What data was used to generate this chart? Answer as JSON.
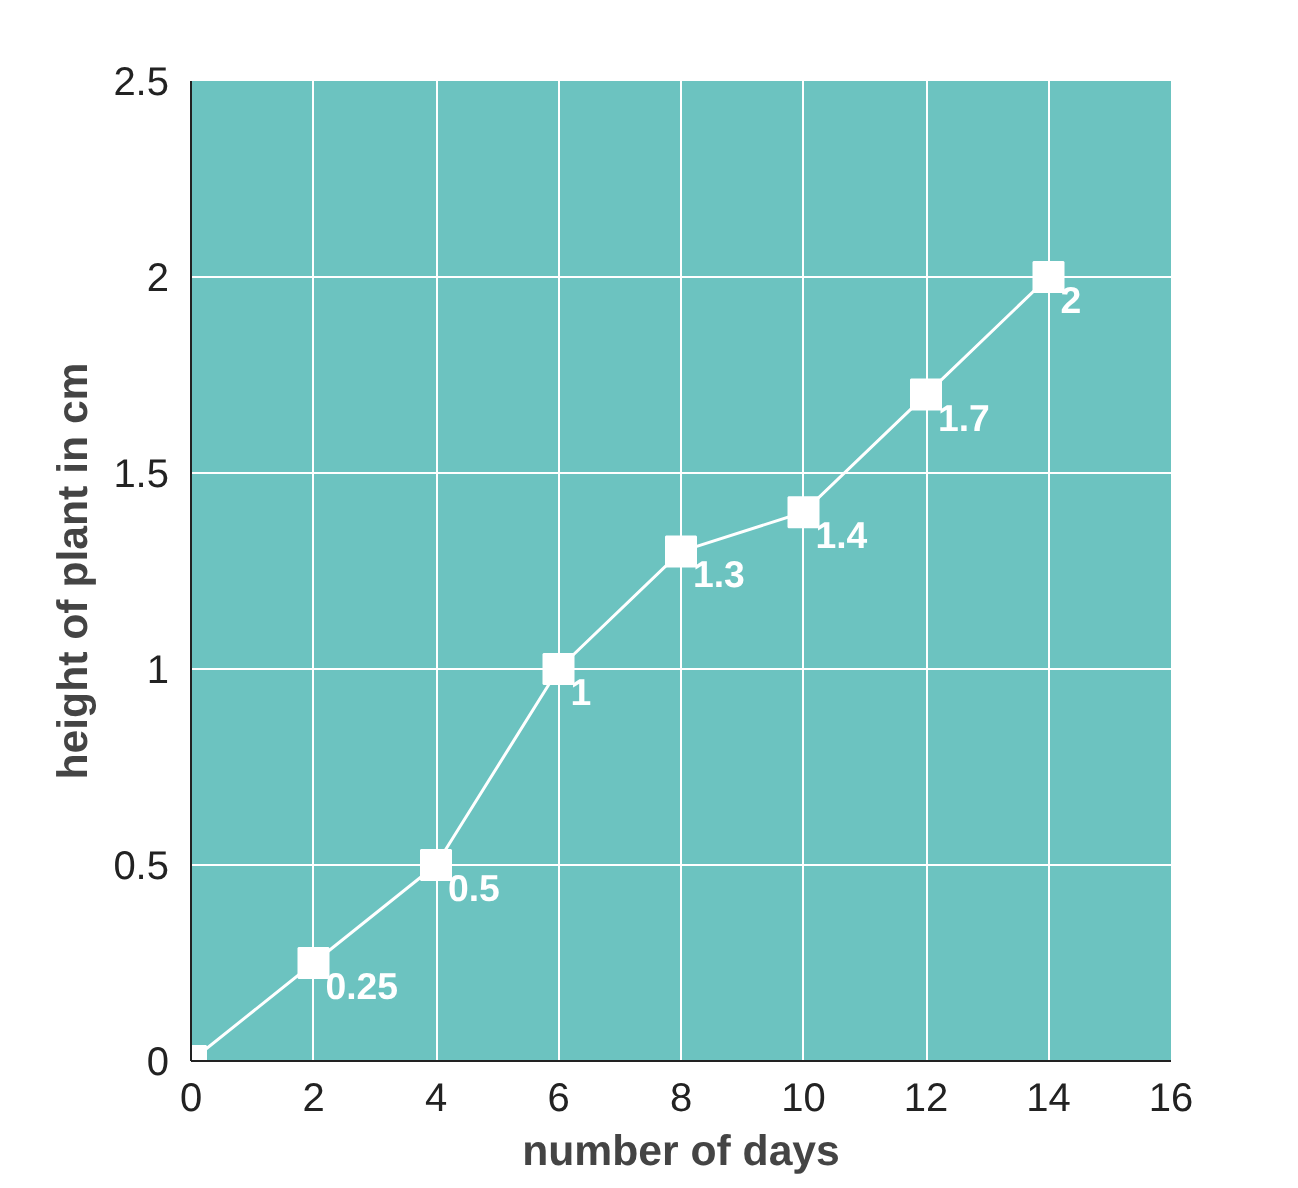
{
  "chart_data": {
    "type": "line",
    "xlabel": "number of days",
    "ylabel": "height of plant in cm",
    "x": [
      0,
      2,
      4,
      6,
      8,
      10,
      12,
      14
    ],
    "series": [
      {
        "color": "#ffffff",
        "values": [
          0,
          0.25,
          0.5,
          1,
          1.3,
          1.4,
          1.7,
          2
        ],
        "value_labels": [
          null,
          "0.25",
          "0.5",
          "1",
          "1.3",
          "1.4",
          "1.7",
          "2"
        ]
      }
    ],
    "xlim": [
      0,
      16
    ],
    "xticks": [
      0,
      2,
      4,
      6,
      8,
      10,
      12,
      14,
      16
    ],
    "ylim": [
      0,
      2.5
    ],
    "yticks": [
      0,
      0.5,
      1,
      1.5,
      2,
      2.5
    ],
    "grid": true,
    "marker": "square",
    "line_style": "solid"
  }
}
